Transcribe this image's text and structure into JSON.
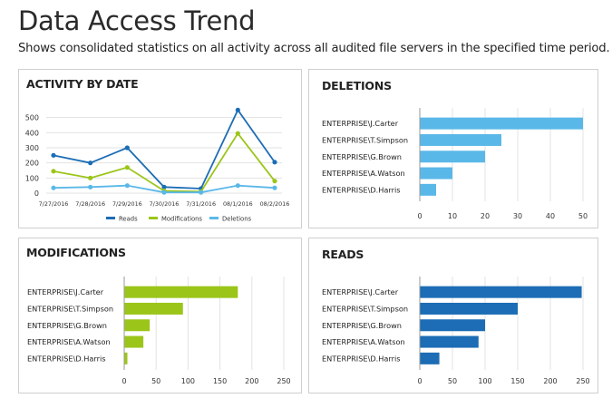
{
  "page": {
    "title": "Data Access Trend",
    "subtitle": "Shows consolidated statistics on all activity across all audited file servers in the specified time period."
  },
  "colors": {
    "reads": "#1c6db5",
    "modifications": "#9cc51a",
    "deletions": "#5ab8e8",
    "grid": "#e3e3e3",
    "axis": "#9a9a9a"
  },
  "chart_data": [
    {
      "id": "activity",
      "type": "line",
      "title": "ACTIVITY BY DATE",
      "categories": [
        "7/27/2016",
        "7/28/2016",
        "7/29/2016",
        "7/30/2016",
        "7/31/2016",
        "08/1/2016",
        "08/2/2016"
      ],
      "ylim": [
        0,
        600
      ],
      "yticks": [
        0,
        100,
        200,
        300,
        400,
        500
      ],
      "grid": true,
      "legend": "bottom",
      "series": [
        {
          "name": "Reads",
          "values": [
            250,
            200,
            300,
            40,
            30,
            550,
            205
          ]
        },
        {
          "name": "Modifications",
          "values": [
            145,
            100,
            170,
            15,
            10,
            395,
            80
          ]
        },
        {
          "name": "Deletions",
          "values": [
            35,
            40,
            50,
            5,
            5,
            50,
            35
          ]
        }
      ]
    },
    {
      "id": "deletions",
      "type": "bar",
      "orientation": "horizontal",
      "title": "DELETIONS",
      "categories": [
        "ENTERPRISE\\J.Carter",
        "ENTERPRISE\\T.Simpson",
        "ENTERPRISE\\G.Brown",
        "ENTERPRISE\\A.Watson",
        "ENTERPRISE\\D.Harris"
      ],
      "values": [
        50,
        25,
        20,
        10,
        5
      ],
      "xlim": [
        0,
        50
      ],
      "xticks": [
        0,
        10,
        20,
        30,
        40,
        50
      ],
      "grid": true
    },
    {
      "id": "modifications",
      "type": "bar",
      "orientation": "horizontal",
      "title": "MODIFICATIONS",
      "categories": [
        "ENTERPRISE\\J.Carter",
        "ENTERPRISE\\T.Simpson",
        "ENTERPRISE\\G.Brown",
        "ENTERPRISE\\A.Watson",
        "ENTERPRISE\\D.Harris"
      ],
      "values": [
        178,
        92,
        40,
        30,
        5
      ],
      "xlim": [
        0,
        250
      ],
      "xticks": [
        0,
        50,
        100,
        150,
        200,
        250
      ],
      "grid": true
    },
    {
      "id": "reads",
      "type": "bar",
      "orientation": "horizontal",
      "title": "READS",
      "categories": [
        "ENTERPRISE\\J.Carter",
        "ENTERPRISE\\T.Simpson",
        "ENTERPRISE\\G.Brown",
        "ENTERPRISE\\A.Watson",
        "ENTERPRISE\\D.Harris"
      ],
      "values": [
        248,
        150,
        100,
        90,
        30
      ],
      "xlim": [
        0,
        250
      ],
      "xticks": [
        0,
        50,
        100,
        150,
        200,
        250
      ],
      "grid": true
    }
  ]
}
